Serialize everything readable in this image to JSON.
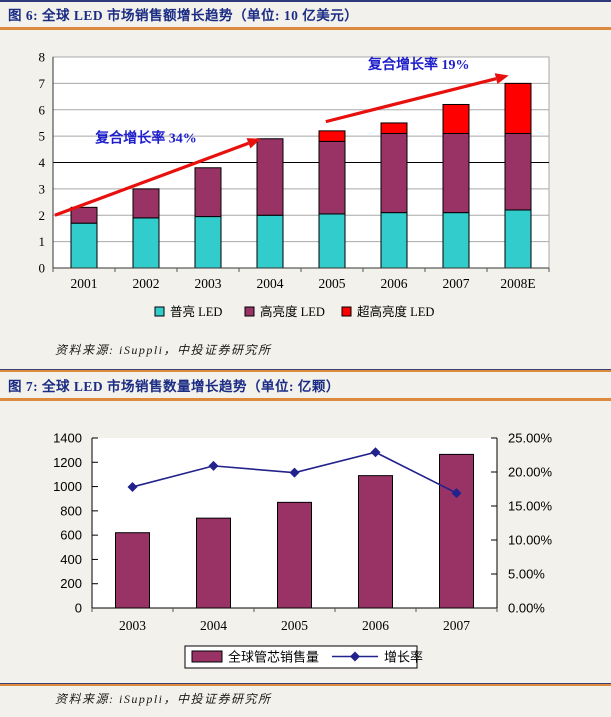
{
  "colors": {
    "page_bg": "#F2F1EB",
    "header_text": "#1B2C85",
    "orange_rule": "#DD8A3E",
    "navy_rule": "#2E3A7C",
    "annotation_blue": "#1F1FCC",
    "arrow_red": "#E8100C",
    "grid_gray": "#A8A8A8",
    "axis_dark": "#333333"
  },
  "figures": [
    {
      "title": "图 6: 全球 LED 市场销售额增长趋势（单位: 10 亿美元）",
      "source": "资料来源: iSuppli，中投证券研究所"
    },
    {
      "title": "图 7: 全球 LED 市场销售数量增长趋势（单位: 亿颗）",
      "source": "资料来源: iSuppli，中投证券研究所"
    }
  ],
  "chart_data": [
    {
      "type": "bar",
      "stacked": true,
      "title": "全球 LED 市场销售额增长趋势（单位: 10 亿美元）",
      "categories": [
        "2001",
        "2002",
        "2003",
        "2004",
        "2005",
        "2006",
        "2007",
        "2008E"
      ],
      "series": [
        {
          "name": "普亮 LED",
          "color": "#33CCCC",
          "values": [
            1.7,
            1.9,
            1.95,
            2.0,
            2.05,
            2.1,
            2.1,
            2.2
          ]
        },
        {
          "name": "高亮度 LED",
          "color": "#993366",
          "values": [
            0.6,
            1.1,
            1.85,
            2.9,
            2.75,
            3.0,
            3.0,
            2.9
          ]
        },
        {
          "name": "超高亮度 LED",
          "color": "#FF0000",
          "values": [
            0,
            0,
            0,
            0,
            0.4,
            0.4,
            1.1,
            1.9
          ]
        }
      ],
      "stack_totals": [
        2.3,
        3.0,
        3.8,
        4.9,
        5.2,
        5.5,
        6.2,
        7.0
      ],
      "ylim": [
        0,
        8
      ],
      "yticks": [
        0,
        1,
        2,
        3,
        4,
        5,
        6,
        7,
        8
      ],
      "grid": true,
      "dark_gridline_at": 4,
      "legend_position": "bottom",
      "annotations": [
        {
          "text": "复合增长率 34%",
          "color": "#1F1FCC",
          "text_at": {
            "cat": 1.0,
            "val": 4.75
          },
          "arrow": {
            "from": {
              "cat": -0.47,
              "val": 2.0
            },
            "to": {
              "cat": 2.85,
              "val": 4.9
            }
          }
        },
        {
          "text": "复合增长率 19%",
          "color": "#1F1FCC",
          "text_at": {
            "cat": 5.4,
            "val": 7.55
          },
          "arrow": {
            "from": {
              "cat": 3.9,
              "val": 5.55
            },
            "to": {
              "cat": 6.85,
              "val": 7.3
            }
          }
        }
      ]
    },
    {
      "type": "combo",
      "title": "全球 LED 市场销售数量增长趋势（单位: 亿颗）",
      "categories": [
        "2003",
        "2004",
        "2005",
        "2006",
        "2007"
      ],
      "bar_series": {
        "name": "全球管芯销售量",
        "color": "#993366",
        "axis": "left",
        "values": [
          620,
          740,
          870,
          1090,
          1265
        ]
      },
      "line_series": {
        "name": "增长率",
        "color": "#22228C",
        "marker": "diamond",
        "axis": "right",
        "values_pct": [
          17.8,
          20.9,
          19.9,
          22.9,
          16.9
        ]
      },
      "left_ylim": [
        0,
        1400
      ],
      "left_yticks": [
        0,
        200,
        400,
        600,
        800,
        1000,
        1200,
        1400
      ],
      "right_ylim_pct": [
        0,
        25
      ],
      "right_yticks": [
        {
          "label": "0.00%",
          "value": 0
        },
        {
          "label": "5.00%",
          "value": 5
        },
        {
          "label": "10.00%",
          "value": 10
        },
        {
          "label": "15.00%",
          "value": 15
        },
        {
          "label": "20.00%",
          "value": 20
        },
        {
          "label": "25.00%",
          "value": 25
        }
      ],
      "grid": false,
      "legend_position": "bottom-box"
    }
  ]
}
